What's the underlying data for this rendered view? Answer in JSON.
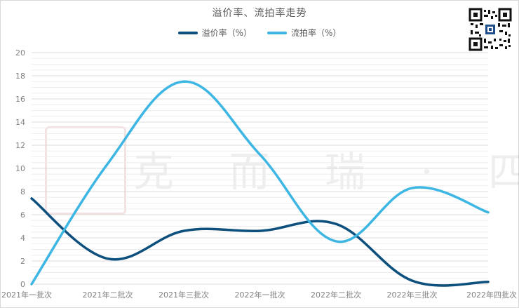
{
  "header": {
    "title": "溢价率、流拍率走势"
  },
  "legend": {
    "series1": "溢价率（%）",
    "series2": "流拍率（%）"
  },
  "watermark": {
    "text": "克 而 瑞 · 四 川"
  },
  "colors": {
    "premium": "#0d4f7d",
    "flow": "#3db6e3",
    "grid": "#e6e6e6"
  },
  "chart_data": {
    "type": "line",
    "title": "溢价率、流拍率走势",
    "categories": [
      "2021年一批次",
      "2021年二批次",
      "2021年三批次",
      "2022年一批次",
      "2022年二批次",
      "2022年三批次",
      "2022年四批次"
    ],
    "ylim": [
      0,
      20
    ],
    "yticks": [
      0,
      2,
      4,
      6,
      8,
      10,
      12,
      14,
      16,
      18,
      20
    ],
    "grid": true,
    "legend_position": "top-center",
    "smooth": true,
    "series": [
      {
        "name": "溢价率（%）",
        "values": [
          7.4,
          2.2,
          4.6,
          4.6,
          5.2,
          0.3,
          0.2
        ]
      },
      {
        "name": "流拍率（%）",
        "values": [
          0.0,
          10.4,
          17.5,
          11.2,
          3.7,
          8.3,
          6.2
        ]
      }
    ]
  }
}
